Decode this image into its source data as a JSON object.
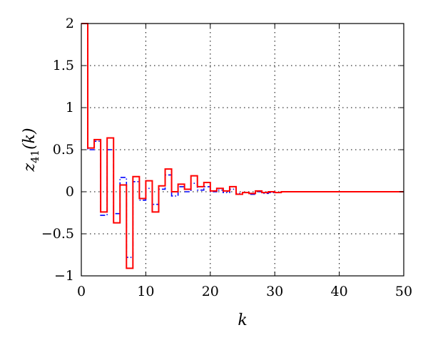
{
  "chart_data": {
    "type": "line",
    "title": "",
    "xlabel": "k",
    "ylabel_var": "z",
    "ylabel_sub": "41",
    "ylabel_arg": "(k)",
    "xlim": [
      0,
      50
    ],
    "ylim": [
      -1,
      2
    ],
    "grid": true,
    "x_ticks": [
      0,
      10,
      20,
      30,
      40,
      50
    ],
    "x_tick_labels": [
      "0",
      "10",
      "20",
      "30",
      "40",
      "50"
    ],
    "y_ticks": [
      -1,
      -0.5,
      0,
      0.5,
      1,
      1.5,
      2
    ],
    "y_tick_labels": [
      "−1",
      "−0.5",
      "0",
      "0.5",
      "1",
      "1.5",
      "2"
    ],
    "series": [
      {
        "color": "#ff0000",
        "style": "solid",
        "step": true,
        "x": [
          0,
          1,
          2,
          3,
          4,
          5,
          6,
          7,
          8,
          9,
          10,
          11,
          12,
          13,
          14,
          15,
          16,
          17,
          18,
          19,
          20,
          21,
          22,
          23,
          24,
          25,
          26,
          27,
          28,
          29,
          30,
          31,
          32,
          33,
          34,
          35,
          36,
          37,
          38,
          39,
          40,
          41,
          42,
          43,
          44,
          45,
          46,
          47,
          48,
          49,
          50
        ],
        "values": [
          2.0,
          0.52,
          0.62,
          -0.24,
          0.64,
          -0.37,
          0.08,
          -0.91,
          0.18,
          -0.08,
          0.13,
          -0.24,
          0.07,
          0.27,
          0.0,
          0.09,
          0.03,
          0.19,
          0.06,
          0.11,
          0.01,
          0.04,
          0.01,
          0.06,
          -0.03,
          -0.01,
          -0.02,
          0.01,
          -0.01,
          0.0,
          -0.01,
          0.0,
          0.0,
          0.0,
          0.0,
          0.0,
          0.0,
          0.0,
          0.0,
          0.0,
          0.0,
          0.0,
          0.0,
          0.0,
          0.0,
          0.0,
          0.0,
          0.0,
          0.0,
          0.0,
          0.0
        ]
      },
      {
        "color": "#0000ff",
        "style": "dashdot",
        "step": true,
        "x": [
          0,
          1,
          2,
          3,
          4,
          5,
          6,
          7,
          8,
          9,
          10,
          11,
          12,
          13,
          14,
          15,
          16,
          17,
          18,
          19,
          20,
          21,
          22,
          23,
          24,
          25,
          26,
          27,
          28,
          29,
          30,
          31,
          32,
          33,
          34,
          35,
          36,
          37,
          38,
          39,
          40,
          41,
          42,
          43,
          44,
          45,
          46,
          47,
          48,
          49,
          50
        ],
        "values": [
          2.0,
          0.5,
          0.6,
          -0.28,
          0.5,
          -0.26,
          0.17,
          -0.78,
          0.12,
          -0.1,
          0.04,
          -0.15,
          0.03,
          0.2,
          -0.05,
          0.06,
          0.0,
          0.1,
          0.02,
          0.06,
          0.0,
          0.02,
          -0.01,
          0.03,
          -0.02,
          -0.01,
          -0.03,
          0.0,
          -0.02,
          -0.01,
          -0.01,
          0.0,
          0.0,
          0.0,
          0.0,
          0.0,
          0.0,
          0.0,
          0.0,
          0.0,
          0.0,
          0.0,
          0.0,
          0.0,
          0.0,
          0.0,
          0.0,
          0.0,
          0.0,
          0.0,
          0.0
        ]
      }
    ]
  }
}
